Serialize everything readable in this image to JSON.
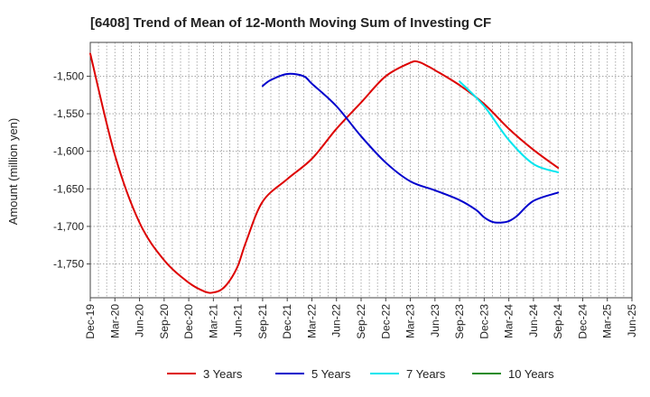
{
  "chart_data": {
    "type": "line",
    "title": "[6408]  Trend of Mean of 12-Month Moving Sum of Investing CF",
    "xlabel": "",
    "ylabel": "Amount (million yen)",
    "ylim": [
      -1795,
      -1455
    ],
    "y_ticks": [
      -1500,
      -1550,
      -1600,
      -1650,
      -1700,
      -1750
    ],
    "y_tick_labels": [
      "-1,500",
      "-1,550",
      "-1,600",
      "-1,650",
      "-1,700",
      "-1,750"
    ],
    "x_range_months": [
      0,
      66
    ],
    "x_tick_months": [
      0,
      3,
      6,
      9,
      12,
      15,
      18,
      21,
      24,
      27,
      30,
      33,
      36,
      39,
      42,
      45,
      48,
      51,
      54,
      57,
      60,
      63,
      66
    ],
    "x_tick_labels": [
      "Dec-19",
      "Mar-20",
      "Jun-20",
      "Sep-20",
      "Dec-20",
      "Mar-21",
      "Jun-21",
      "Sep-21",
      "Dec-21",
      "Mar-22",
      "Jun-22",
      "Sep-22",
      "Dec-22",
      "Mar-23",
      "Jun-23",
      "Sep-23",
      "Dec-23",
      "Mar-24",
      "Jun-24",
      "Sep-24",
      "Dec-24",
      "Mar-25",
      "Jun-25"
    ],
    "grid": true,
    "legend_position": "bottom",
    "series": [
      {
        "name": "3 Years",
        "color": "#dd0000",
        "x_months": [
          0,
          3,
          6,
          9,
          12,
          14,
          15,
          16,
          17,
          18,
          19,
          21,
          24,
          27,
          30,
          33,
          36,
          39,
          40,
          41,
          42,
          45,
          48,
          51,
          54,
          57
        ],
        "values": [
          -1470,
          -1605,
          -1695,
          -1745,
          -1775,
          -1787,
          -1788,
          -1784,
          -1772,
          -1752,
          -1720,
          -1667,
          -1637,
          -1610,
          -1570,
          -1535,
          -1500,
          -1482,
          -1481,
          -1486,
          -1492,
          -1512,
          -1537,
          -1570,
          -1598,
          -1622
        ]
      },
      {
        "name": "5 Years",
        "color": "#0000cc",
        "x_months": [
          21,
          22,
          24,
          26,
          27,
          30,
          33,
          36,
          39,
          42,
          45,
          47,
          48,
          49,
          50,
          51,
          52,
          54,
          57
        ],
        "values": [
          -1513,
          -1505,
          -1497,
          -1500,
          -1510,
          -1540,
          -1580,
          -1615,
          -1640,
          -1652,
          -1665,
          -1678,
          -1688,
          -1694,
          -1695,
          -1693,
          -1686,
          -1666,
          -1655
        ]
      },
      {
        "name": "7 Years",
        "color": "#00e5ee",
        "x_months": [
          45,
          48,
          51,
          54,
          57
        ],
        "values": [
          -1507,
          -1540,
          -1585,
          -1617,
          -1628
        ]
      },
      {
        "name": "10 Years",
        "color": "#228b22",
        "x_months": [],
        "values": []
      }
    ]
  }
}
